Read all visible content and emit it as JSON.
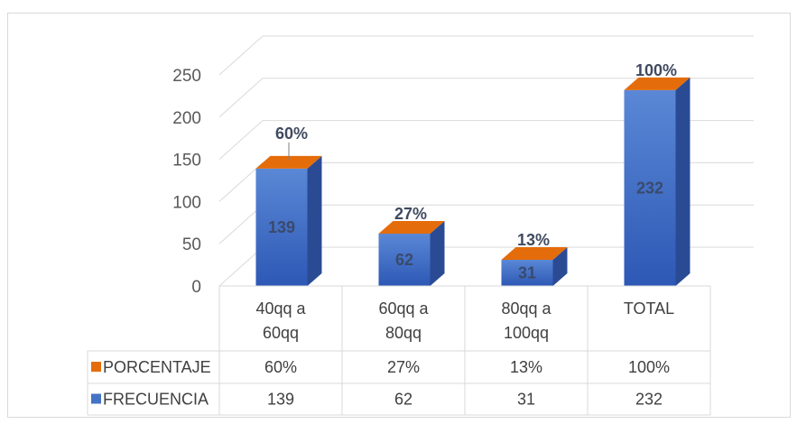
{
  "chart_data": {
    "type": "bar",
    "title": "",
    "xlabel": "",
    "ylabel": "",
    "ylim": [
      0,
      250
    ],
    "yticks": [
      0,
      50,
      100,
      150,
      200,
      250
    ],
    "grid": true,
    "three_d": true,
    "legend_position": "bottom-table",
    "categories": [
      [
        "40qq a",
        "60qq"
      ],
      [
        "60qq a",
        "80qq"
      ],
      [
        "80qq a",
        "100qq"
      ],
      [
        "TOTAL"
      ]
    ],
    "series": [
      {
        "name": "PORCENTAJE",
        "values": [
          0.6,
          0.27,
          0.13,
          1.0
        ],
        "labels": [
          "60%",
          "27%",
          "13%",
          "100%"
        ],
        "color": "#e46c0a"
      },
      {
        "name": "FRECUENCIA",
        "values": [
          139,
          62,
          31,
          232
        ],
        "labels": [
          "139",
          "62",
          "31",
          "232"
        ],
        "color": "#4472c4"
      }
    ]
  }
}
